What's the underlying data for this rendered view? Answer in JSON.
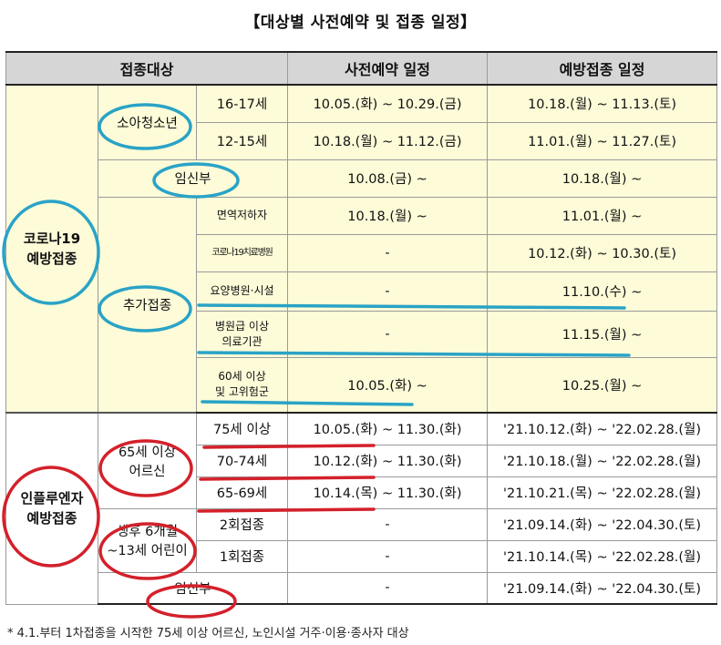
{
  "title": "【대상별 사전예약 및 접종 일정】",
  "headers": {
    "target": "접종대상",
    "reservation": "사전예약 일정",
    "vaccination": "예방접종 일정"
  },
  "covid": {
    "group": "코로나19\n예방접종",
    "teens": {
      "label": "소아청소년",
      "rows": [
        {
          "age": "16-17세",
          "reservation": "10.05.(화) ~ 10.29.(금)",
          "vaccination": "10.18.(월) ~ 11.13.(토)"
        },
        {
          "age": "12-15세",
          "reservation": "10.18.(월) ~ 11.12.(금)",
          "vaccination": "11.01.(월) ~ 11.27.(토)"
        }
      ]
    },
    "pregnant": {
      "label": "임신부",
      "reservation": "10.08.(금) ~",
      "vaccination": "10.18.(월) ~"
    },
    "additional": {
      "label": "추가접종",
      "rows": [
        {
          "target": "면역저하자",
          "reservation": "10.18.(월) ~",
          "vaccination": "11.01.(월) ~"
        },
        {
          "target": "코로나19치료병원",
          "reservation": "-",
          "vaccination": "10.12.(화) ~ 10.30.(토)"
        },
        {
          "target": "요양병원·시설",
          "reservation": "-",
          "vaccination": "11.10.(수) ~"
        },
        {
          "target": "병원급 이상\n의료기관",
          "reservation": "-",
          "vaccination": "11.15.(월) ~"
        },
        {
          "target": "60세 이상\n및 고위험군",
          "reservation": "10.05.(화) ~",
          "vaccination": "10.25.(월) ~"
        }
      ]
    }
  },
  "flu": {
    "group": "인플루엔자\n예방접종",
    "seniors": {
      "label": "65세 이상\n어르신",
      "rows": [
        {
          "age": "75세 이상",
          "reservation": "10.05.(화) ~ 11.30.(화)",
          "vaccination": "'21.10.12.(화) ~ '22.02.28.(월)"
        },
        {
          "age": "70-74세",
          "reservation": "10.12.(화) ~ 11.30.(화)",
          "vaccination": "'21.10.18.(월) ~ '22.02.28.(월)"
        },
        {
          "age": "65-69세",
          "reservation": "10.14.(목) ~ 11.30.(화)",
          "vaccination": "'21.10.21.(목) ~ '22.02.28.(월)"
        }
      ]
    },
    "children": {
      "label": "생후 6개월\n~13세 어린이",
      "rows": [
        {
          "dose": "2회접종",
          "reservation": "-",
          "vaccination": "'21.09.14.(화) ~ '22.04.30.(토)"
        },
        {
          "dose": "1회접종",
          "reservation": "-",
          "vaccination": "'21.10.14.(목) ~ '22.02.28.(월)"
        }
      ]
    },
    "pregnant": {
      "label": "임신부",
      "reservation": "-",
      "vaccination": "'21.09.14.(화) ~ '22.04.30.(토)"
    }
  },
  "footnote": "* 4.1.부터 1차접종을 시작한 75세 이상 어르신, 노인시설 거주·이용·종사자 대상",
  "colors": {
    "covid_bg": "#fdfbd8",
    "header_bg": "#d6d6d6",
    "covid_marker": "#2aa3c6",
    "flu_marker": "#d4202a"
  }
}
